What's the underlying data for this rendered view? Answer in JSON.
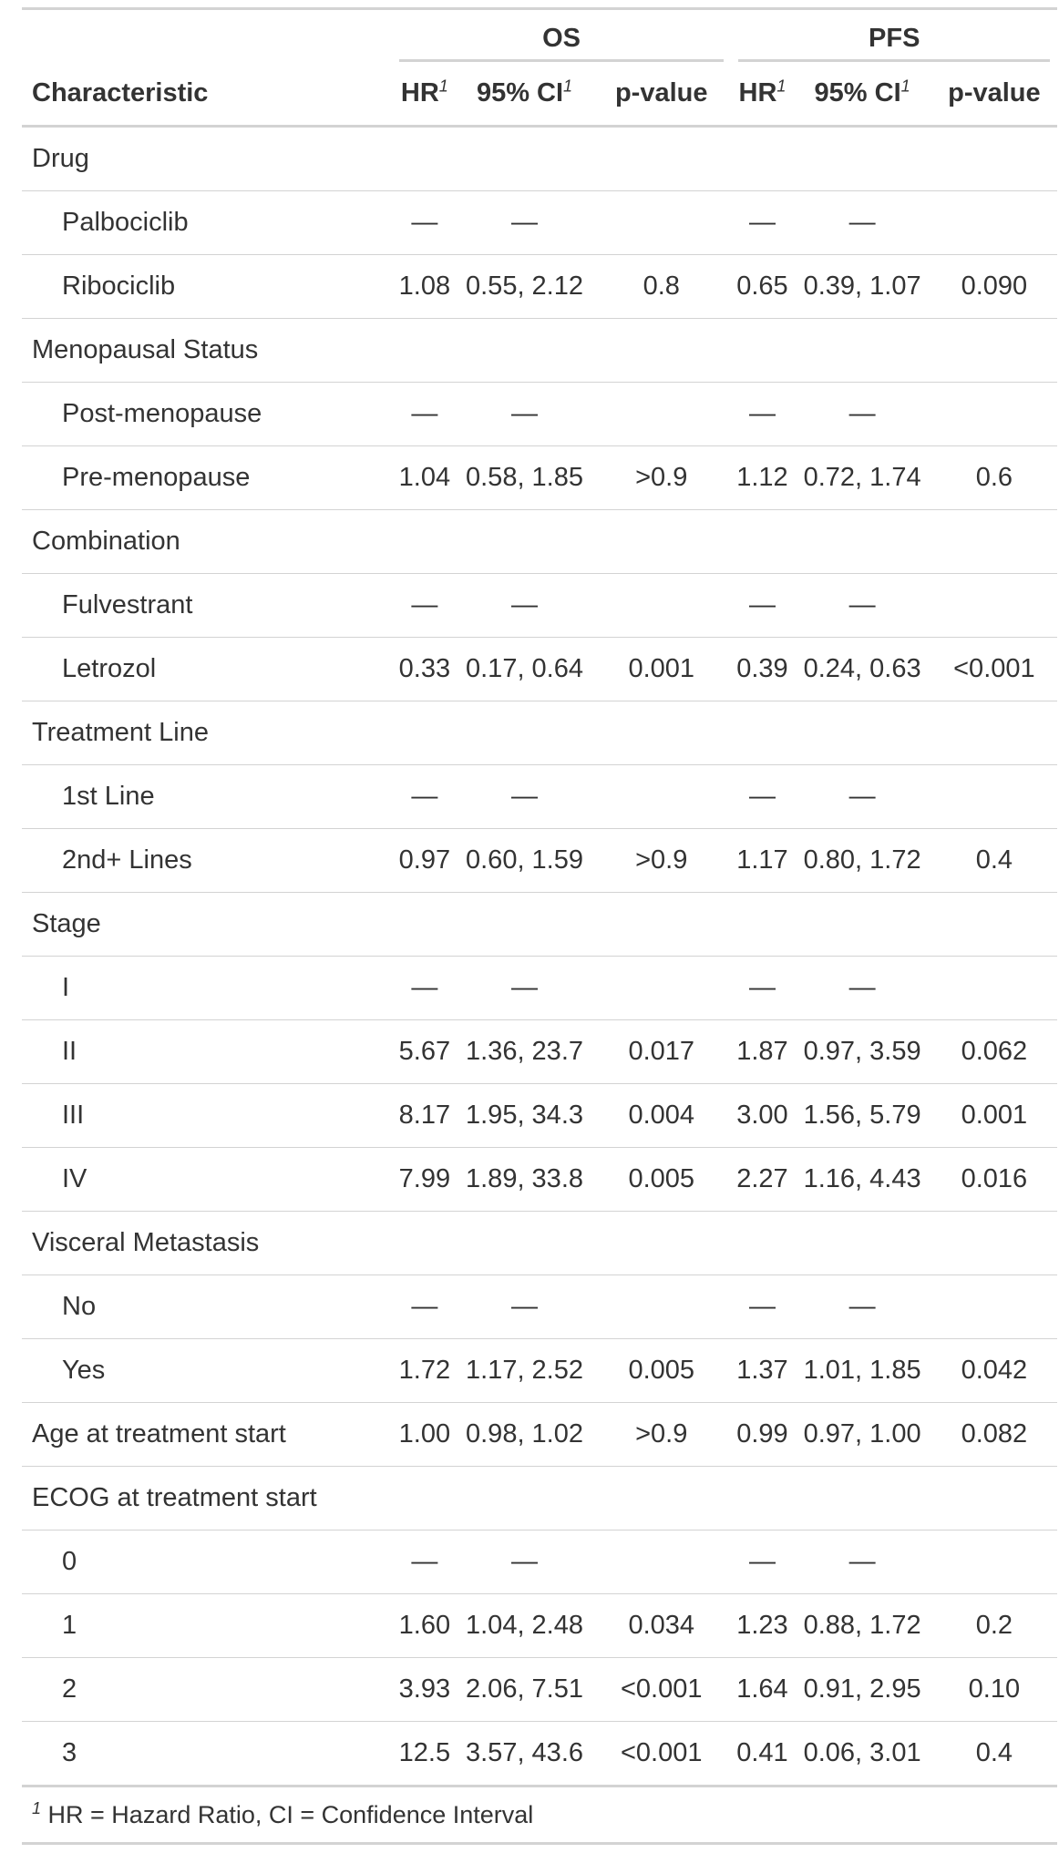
{
  "table": {
    "spanners": {
      "os": "OS",
      "pfs": "PFS"
    },
    "columns": {
      "characteristic": "Characteristic",
      "hr": "HR",
      "ci": "95% CI",
      "p": "p-value",
      "footnote_mark": "1"
    },
    "rows": [
      {
        "label": "Drug",
        "indent": false,
        "cells": [
          "",
          "",
          "",
          "",
          "",
          ""
        ]
      },
      {
        "label": "Palbociclib",
        "indent": true,
        "cells": [
          "—",
          "—",
          "",
          "—",
          "—",
          ""
        ]
      },
      {
        "label": "Ribociclib",
        "indent": true,
        "cells": [
          "1.08",
          "0.55, 2.12",
          "0.8",
          "0.65",
          "0.39, 1.07",
          "0.090"
        ]
      },
      {
        "label": "Menopausal Status",
        "indent": false,
        "cells": [
          "",
          "",
          "",
          "",
          "",
          ""
        ]
      },
      {
        "label": "Post-menopause",
        "indent": true,
        "cells": [
          "—",
          "—",
          "",
          "—",
          "—",
          ""
        ]
      },
      {
        "label": "Pre-menopause",
        "indent": true,
        "cells": [
          "1.04",
          "0.58, 1.85",
          ">0.9",
          "1.12",
          "0.72, 1.74",
          "0.6"
        ]
      },
      {
        "label": "Combination",
        "indent": false,
        "cells": [
          "",
          "",
          "",
          "",
          "",
          ""
        ]
      },
      {
        "label": "Fulvestrant",
        "indent": true,
        "cells": [
          "—",
          "—",
          "",
          "—",
          "—",
          ""
        ]
      },
      {
        "label": "Letrozol",
        "indent": true,
        "cells": [
          "0.33",
          "0.17, 0.64",
          "0.001",
          "0.39",
          "0.24, 0.63",
          "<0.001"
        ]
      },
      {
        "label": "Treatment Line",
        "indent": false,
        "cells": [
          "",
          "",
          "",
          "",
          "",
          ""
        ]
      },
      {
        "label": "1st Line",
        "indent": true,
        "cells": [
          "—",
          "—",
          "",
          "—",
          "—",
          ""
        ]
      },
      {
        "label": "2nd+ Lines",
        "indent": true,
        "cells": [
          "0.97",
          "0.60, 1.59",
          ">0.9",
          "1.17",
          "0.80, 1.72",
          "0.4"
        ]
      },
      {
        "label": "Stage",
        "indent": false,
        "cells": [
          "",
          "",
          "",
          "",
          "",
          ""
        ]
      },
      {
        "label": "I",
        "indent": true,
        "cells": [
          "—",
          "—",
          "",
          "—",
          "—",
          ""
        ]
      },
      {
        "label": "II",
        "indent": true,
        "cells": [
          "5.67",
          "1.36, 23.7",
          "0.017",
          "1.87",
          "0.97, 3.59",
          "0.062"
        ]
      },
      {
        "label": "III",
        "indent": true,
        "cells": [
          "8.17",
          "1.95, 34.3",
          "0.004",
          "3.00",
          "1.56, 5.79",
          "0.001"
        ]
      },
      {
        "label": "IV",
        "indent": true,
        "cells": [
          "7.99",
          "1.89, 33.8",
          "0.005",
          "2.27",
          "1.16, 4.43",
          "0.016"
        ]
      },
      {
        "label": "Visceral Metastasis",
        "indent": false,
        "cells": [
          "",
          "",
          "",
          "",
          "",
          ""
        ]
      },
      {
        "label": "No",
        "indent": true,
        "cells": [
          "—",
          "—",
          "",
          "—",
          "—",
          ""
        ]
      },
      {
        "label": "Yes",
        "indent": true,
        "cells": [
          "1.72",
          "1.17, 2.52",
          "0.005",
          "1.37",
          "1.01, 1.85",
          "0.042"
        ]
      },
      {
        "label": "Age at treatment start",
        "indent": false,
        "cells": [
          "1.00",
          "0.98, 1.02",
          ">0.9",
          "0.99",
          "0.97, 1.00",
          "0.082"
        ]
      },
      {
        "label": "ECOG at treatment start",
        "indent": false,
        "cells": [
          "",
          "",
          "",
          "",
          "",
          ""
        ]
      },
      {
        "label": "0",
        "indent": true,
        "cells": [
          "—",
          "—",
          "",
          "—",
          "—",
          ""
        ]
      },
      {
        "label": "1",
        "indent": true,
        "cells": [
          "1.60",
          "1.04, 2.48",
          "0.034",
          "1.23",
          "0.88, 1.72",
          "0.2"
        ]
      },
      {
        "label": "2",
        "indent": true,
        "cells": [
          "3.93",
          "2.06, 7.51",
          "<0.001",
          "1.64",
          "0.91, 2.95",
          "0.10"
        ]
      },
      {
        "label": "3",
        "indent": true,
        "cells": [
          "12.5",
          "3.57, 43.6",
          "<0.001",
          "0.41",
          "0.06, 3.01",
          "0.4"
        ]
      }
    ],
    "footnote": {
      "mark": "1",
      "text": "HR = Hazard Ratio, CI = Confidence Interval"
    }
  }
}
